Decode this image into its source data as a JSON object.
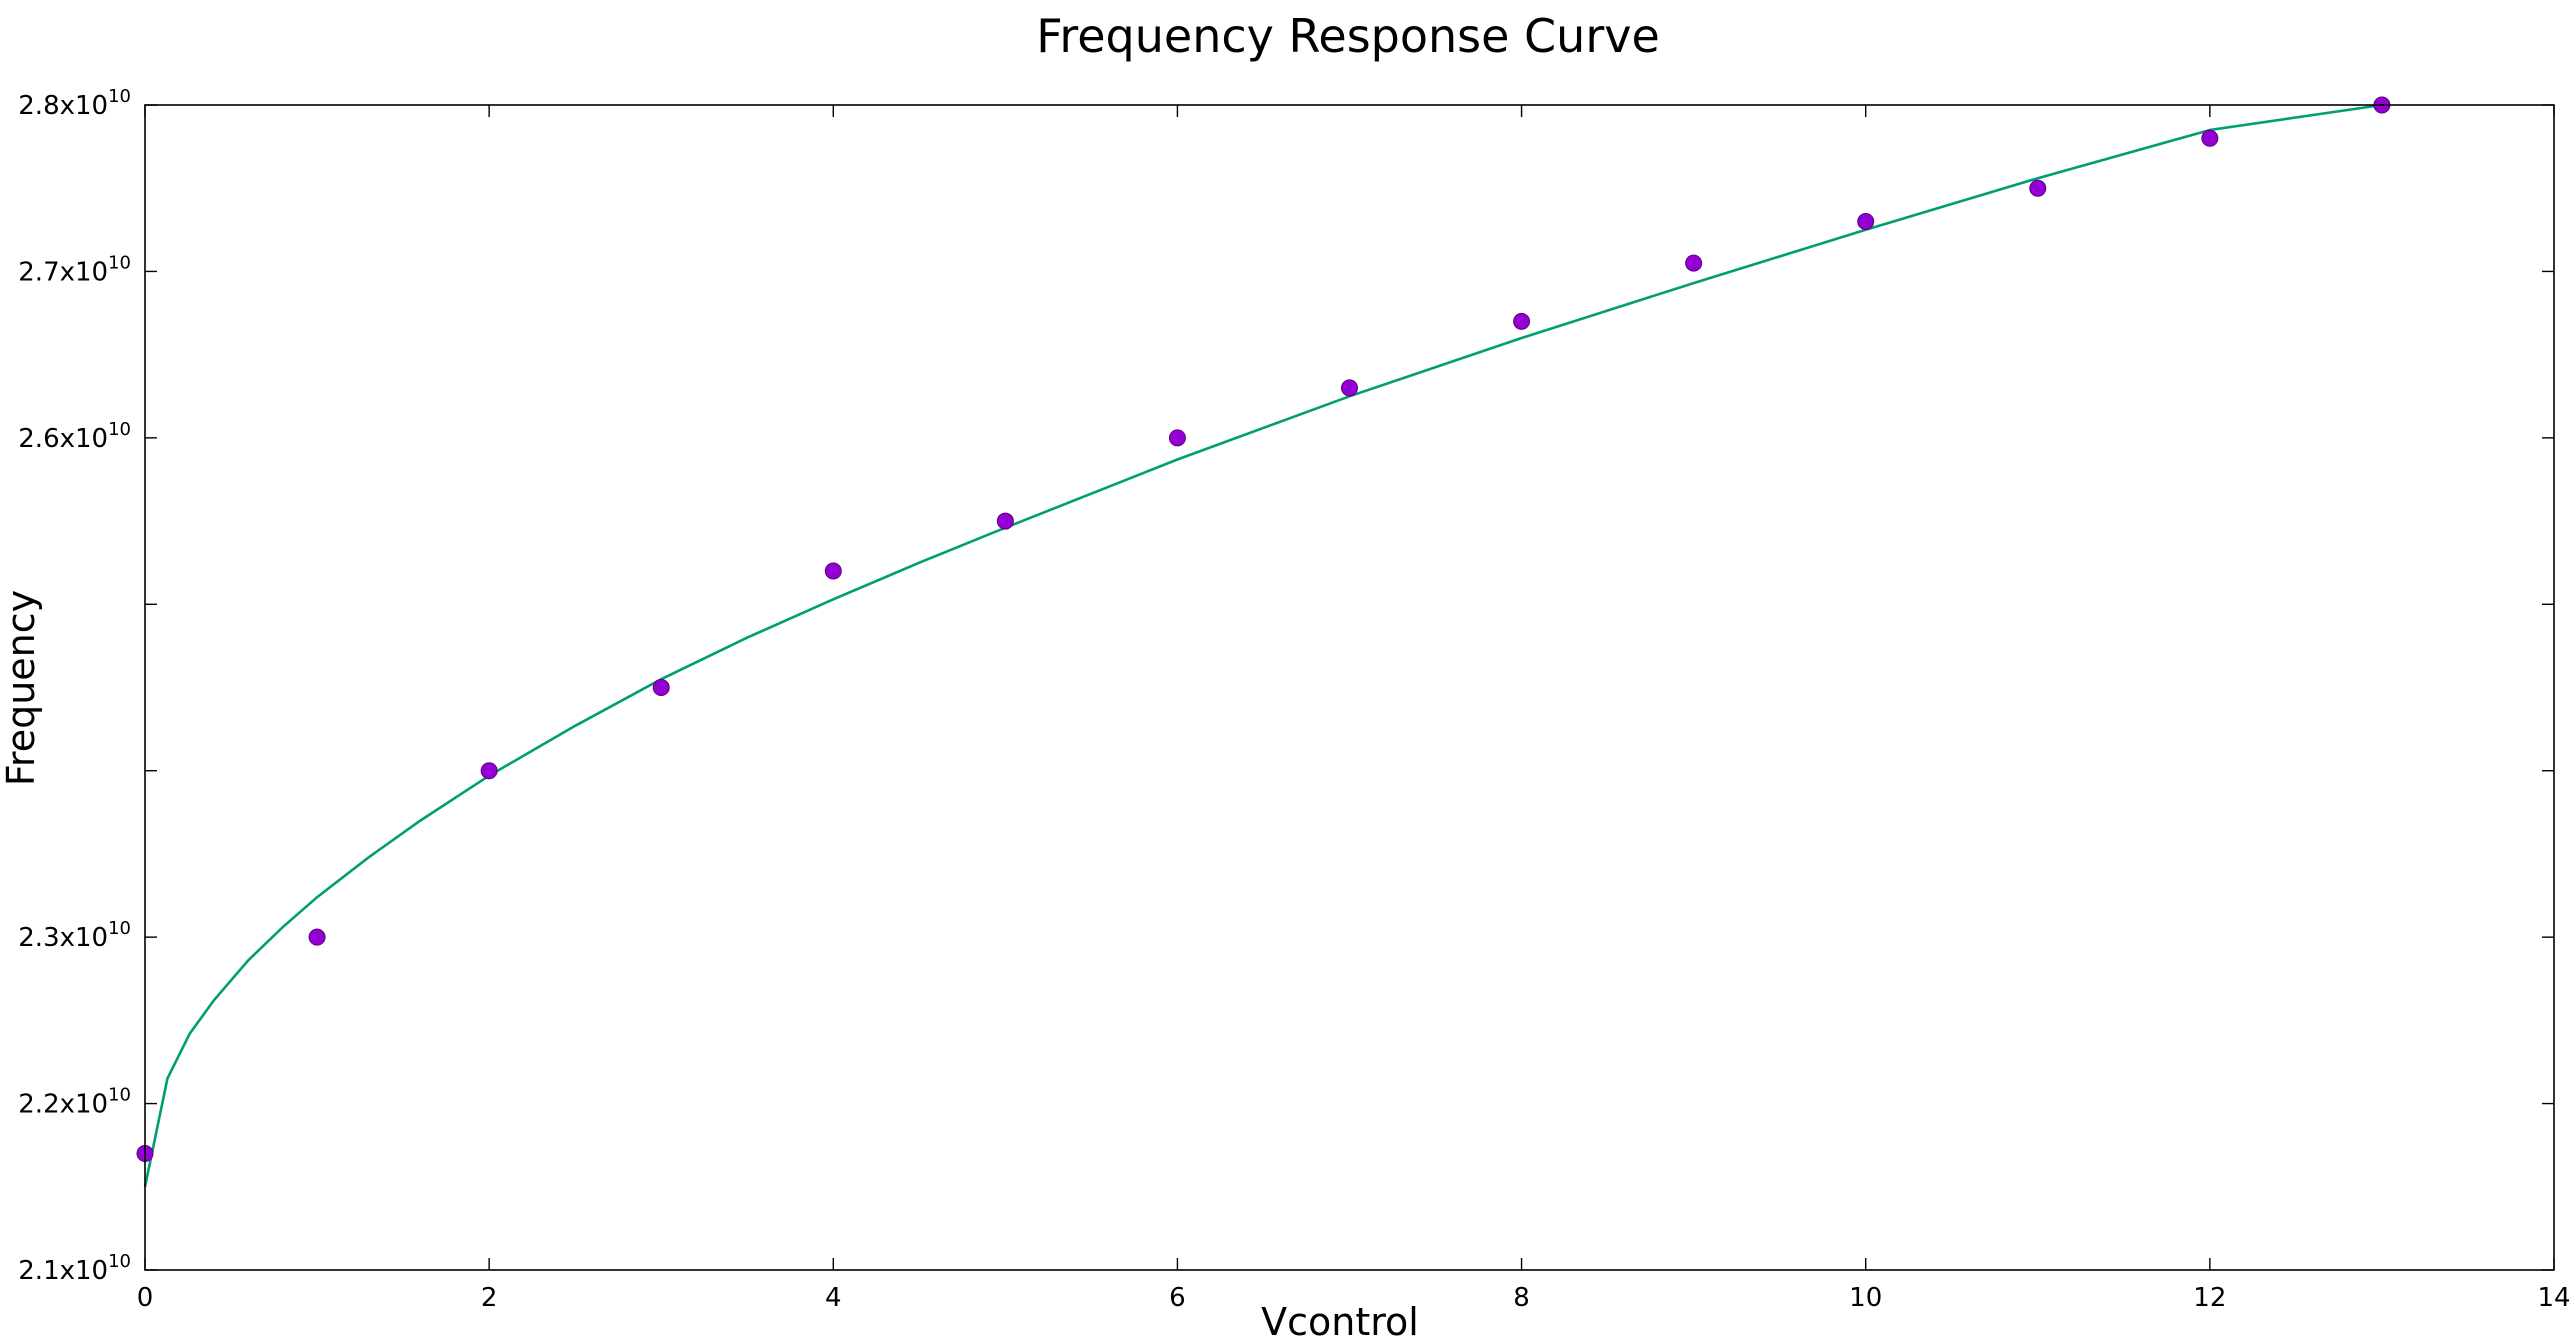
{
  "chart_data": {
    "type": "scatter",
    "title": "Frequency Response Curve",
    "xlabel": "Vcontrol",
    "ylabel": "Frequency",
    "xlim": [
      0,
      14
    ],
    "ylim": [
      21000000000,
      28000000000
    ],
    "grid": false,
    "x_ticks": [
      0,
      2,
      4,
      6,
      8,
      10,
      12,
      14
    ],
    "x_tick_labels": [
      "0",
      "2",
      "4",
      "6",
      "8",
      "10",
      "12",
      "14"
    ],
    "y_ticks": [
      21000000000,
      22000000000,
      23000000000,
      24000000000,
      25000000000,
      26000000000,
      27000000000,
      28000000000
    ],
    "y_tick_labels": [
      {
        "base": "2.1x10",
        "exp": "10"
      },
      {
        "base": "2.2x10",
        "exp": "10"
      },
      {
        "base": "2.3x10",
        "exp": "10"
      },
      {
        "base": "",
        "exp": ""
      },
      {
        "base": "",
        "exp": ""
      },
      {
        "base": "2.6x10",
        "exp": "10"
      },
      {
        "base": "2.7x10",
        "exp": "10"
      },
      {
        "base": "2.8x10",
        "exp": "10"
      }
    ],
    "series": [
      {
        "kind": "points",
        "color": "#9400d3",
        "x": [
          0,
          1,
          2,
          3,
          4,
          5,
          6,
          7,
          8,
          9,
          10,
          11,
          12,
          13
        ],
        "y": [
          21700000000,
          23000000000,
          24000000000,
          24500000000,
          25200000000,
          25500000000,
          26000000000,
          26300000000,
          26700000000,
          27050000000,
          27300000000,
          27500000000,
          27800000000,
          28000000000
        ]
      },
      {
        "kind": "line",
        "color": "#009e73",
        "x": [
          0,
          0.13,
          0.26,
          0.4,
          0.6,
          0.8,
          1,
          1.3,
          1.6,
          2,
          2.5,
          3,
          3.5,
          4,
          4.5,
          5,
          6,
          7,
          8,
          9,
          10,
          11,
          12,
          13
        ],
        "y": [
          21500000000,
          22150000000,
          22420000000,
          22620000000,
          22860000000,
          23060000000,
          23240000000,
          23480000000,
          23700000000,
          23970000000,
          24270000000,
          24550000000,
          24800000000,
          25030000000,
          25250000000,
          25460000000,
          25870000000,
          26250000000,
          26600000000,
          26930000000,
          27250000000,
          27560000000,
          27850000000,
          28000000000
        ]
      }
    ]
  }
}
